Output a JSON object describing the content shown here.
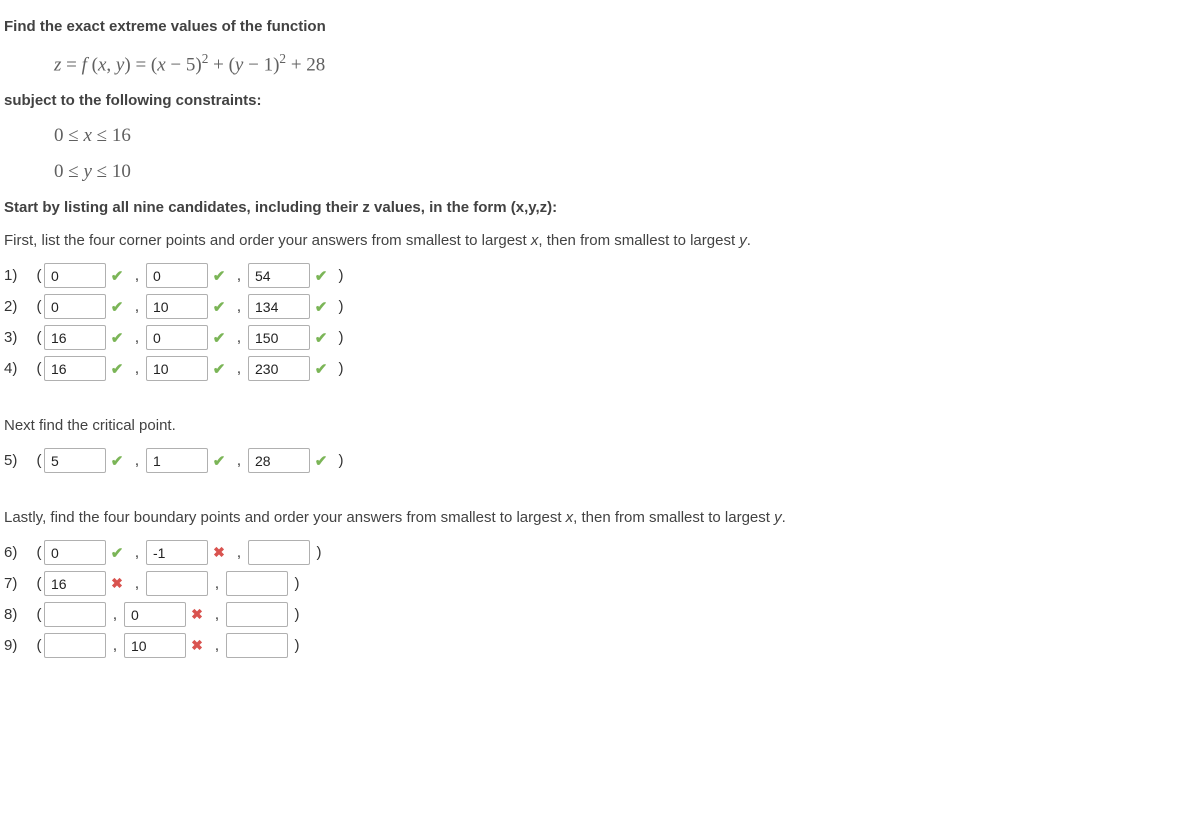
{
  "heading1": "Find the exact extreme values of the function",
  "formula": "z = f (x, y) = (x − 5)² + (y − 1)² + 28",
  "heading2": "subject to the following constraints:",
  "constraint1": "0 ≤ x ≤ 16",
  "constraint2": "0 ≤ y ≤ 10",
  "heading3": "Start by listing all nine candidates, including their z values, in the form (x,y,z):",
  "corners_intro": "First, list the four corner points and order your answers from smallest to largest x, then from smallest to largest y.",
  "critical_intro": "Next find the critical point.",
  "boundary_intro": "Lastly, find the four boundary points and order your answers from smallest to largest x, then from smallest to largest y.",
  "corners": [
    {
      "n": "1)",
      "x": "0",
      "xm": "check",
      "y": "0",
      "ym": "check",
      "z": "54",
      "zm": "check"
    },
    {
      "n": "2)",
      "x": "0",
      "xm": "check",
      "y": "10",
      "ym": "check",
      "z": "134",
      "zm": "check"
    },
    {
      "n": "3)",
      "x": "16",
      "xm": "check",
      "y": "0",
      "ym": "check",
      "z": "150",
      "zm": "check"
    },
    {
      "n": "4)",
      "x": "16",
      "xm": "check",
      "y": "10",
      "ym": "check",
      "z": "230",
      "zm": "check"
    }
  ],
  "critical": {
    "n": "5)",
    "x": "5",
    "xm": "check",
    "y": "1",
    "ym": "check",
    "z": "28",
    "zm": "check"
  },
  "boundary": [
    {
      "n": "6)",
      "x": "0",
      "xm": "check",
      "y": "-1",
      "ym": "cross",
      "z": "",
      "zm": ""
    },
    {
      "n": "7)",
      "x": "16",
      "xm": "cross",
      "y": "",
      "ym": "",
      "z": "",
      "zm": ""
    },
    {
      "n": "8)",
      "x": "",
      "xm": "",
      "y": "0",
      "ym": "cross",
      "z": "",
      "zm": ""
    },
    {
      "n": "9)",
      "x": "",
      "xm": "",
      "y": "10",
      "ym": "cross",
      "z": "",
      "zm": ""
    }
  ]
}
